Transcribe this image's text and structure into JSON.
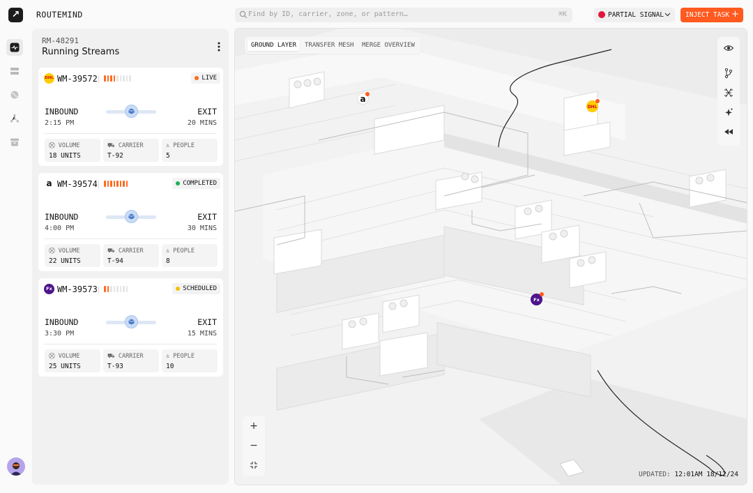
{
  "app": {
    "title": "ROUTEMIND",
    "logo_glyph": "↗"
  },
  "search": {
    "placeholder": "Find by ID, carrier, zone, or pattern…",
    "shortcut": "⌘K"
  },
  "signal": {
    "label": "PARTIAL SIGNAL",
    "color": "#e0183c"
  },
  "inject": {
    "label": "INJECT TASK",
    "icon": "plus-icon"
  },
  "rail": {
    "items": [
      "activity-icon",
      "layers-icon",
      "globe-icon",
      "network-icon",
      "archive-icon"
    ],
    "active": 0
  },
  "panel": {
    "subtitle": "RM-48291",
    "title": "Running Streams"
  },
  "cards": [
    {
      "id": "WM-39572",
      "brand": "dhl",
      "brand_text": "DHL",
      "brand_bg": "#ffcc00",
      "brand_fg": "#d40511",
      "bars_filled": 4,
      "bars_total": 9,
      "bar_color": "#ff6a1f",
      "status": "LIVE",
      "status_color": "#ff6a1f",
      "inbound": "INBOUND",
      "time": "2:15 PM",
      "exit": "EXIT",
      "exit_time": "20 MINS",
      "progress": 0.5,
      "volume_label": "VOLUME",
      "volume": "18 UNITS",
      "carrier_label": "CARRIER",
      "carrier": "T-92",
      "people_label": "PEOPLE",
      "people": "5"
    },
    {
      "id": "WM-39574",
      "brand": "amazon",
      "brand_text": "a",
      "brand_bg": "#ffffff",
      "brand_fg": "#111111",
      "bars_filled": 8,
      "bars_total": 8,
      "bar_color": "#ff6a1f",
      "status": "COMPLETED",
      "status_color": "#1aae5a",
      "inbound": "INBOUND",
      "time": "4:00 PM",
      "exit": "EXIT",
      "exit_time": "30 MINS",
      "progress": 0.5,
      "volume_label": "VOLUME",
      "volume": "22 UNITS",
      "carrier_label": "CARRIER",
      "carrier": "T-94",
      "people_label": "PEOPLE",
      "people": "8"
    },
    {
      "id": "WM-39573",
      "brand": "fedex",
      "brand_text": "Fx",
      "brand_bg": "#4d148c",
      "brand_fg": "#ffffff",
      "bars_filled": 2,
      "bars_total": 8,
      "bar_color": "#ff6a1f",
      "status": "SCHEDULED",
      "status_color": "#f2c200",
      "inbound": "INBOUND",
      "time": "3:30 PM",
      "exit": "EXIT",
      "exit_time": "15 MINS",
      "progress": 0.5,
      "volume_label": "VOLUME",
      "volume": "25 UNITS",
      "carrier_label": "CARRIER",
      "carrier": "T-93",
      "people_label": "PEOPLE",
      "people": "10"
    }
  ],
  "map": {
    "tabs": [
      "GROUND LAYER",
      "TRANSFER MESH",
      "MERGE OVERVIEW"
    ],
    "active_tab": 0,
    "tools": [
      "eye-icon",
      "branch-icon",
      "pattern-icon",
      "sparkle-icon",
      "rewind-icon"
    ],
    "zoom": {
      "in": "+",
      "out": "−",
      "fit": "collapse-icon"
    },
    "updated_label": "UPDATED:",
    "updated_value": "12:01AM 18/12/24",
    "pins": [
      {
        "brand": "amazon",
        "text": "a",
        "bg": "#ffffff",
        "fg": "#111111"
      },
      {
        "brand": "dhl",
        "text": "DHL",
        "bg": "#ffcc00",
        "fg": "#d40511"
      },
      {
        "brand": "fedex",
        "text": "Fx",
        "bg": "#4d148c",
        "fg": "#ffffff"
      }
    ]
  }
}
